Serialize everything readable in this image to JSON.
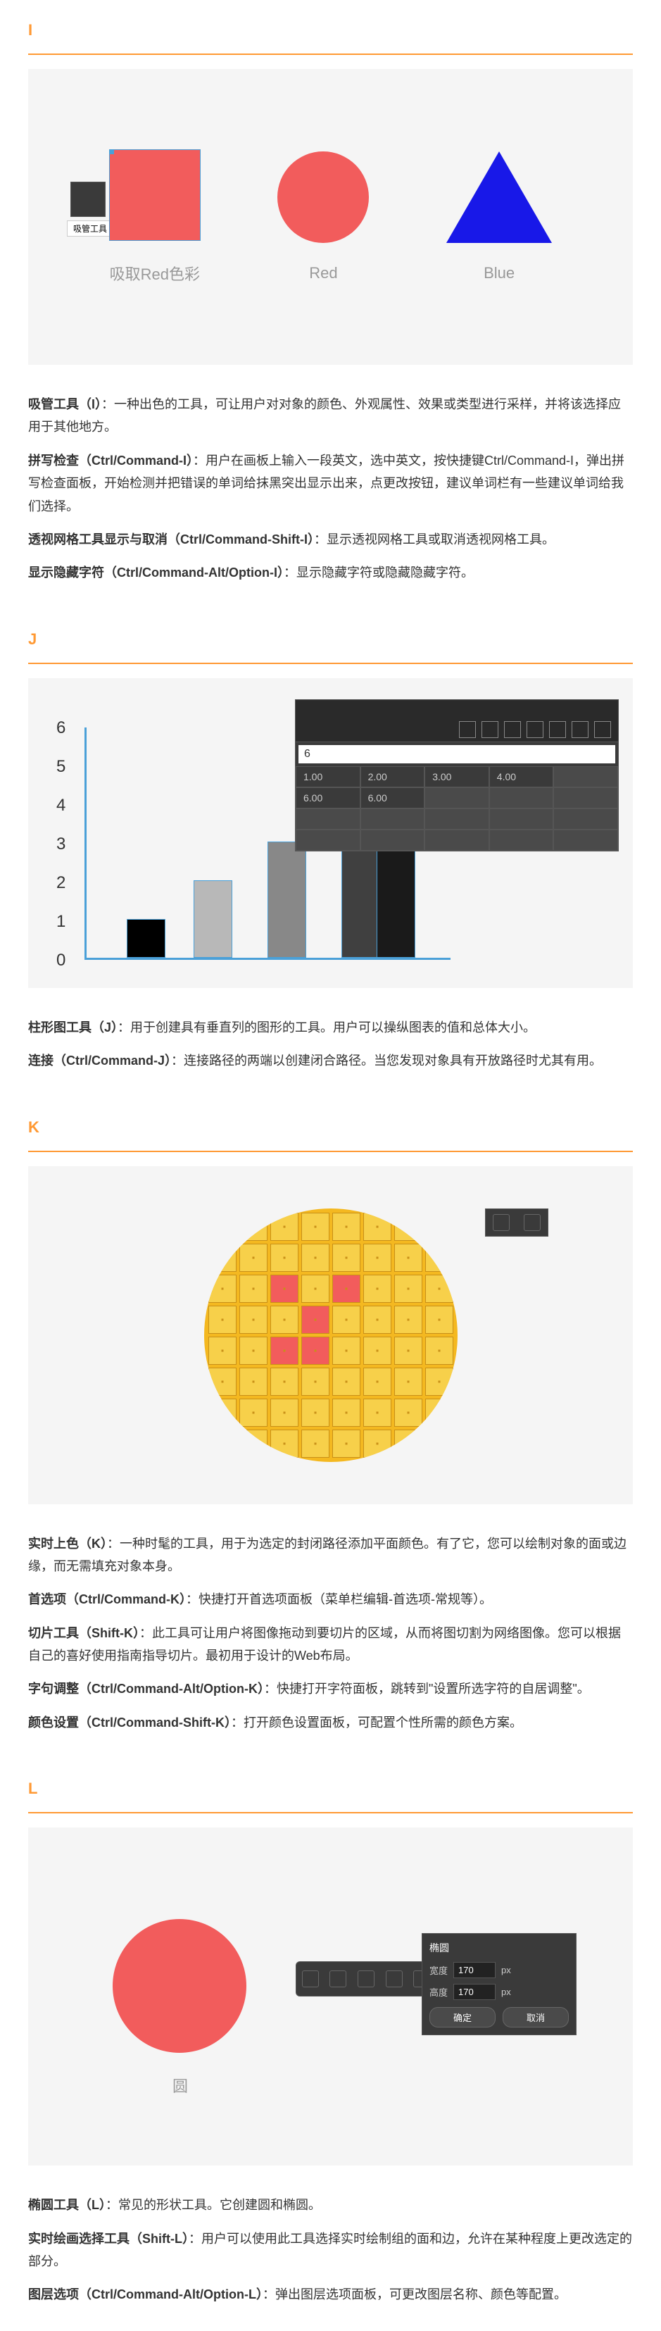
{
  "sections": {
    "I": {
      "letter": "I",
      "illustration": {
        "tool_tooltip": "吸管工具 (I)",
        "shapes": [
          {
            "type": "square",
            "color": "#f25c5c",
            "label": "吸取Red色彩"
          },
          {
            "type": "circle",
            "color": "#f25c5c",
            "label": "Red"
          },
          {
            "type": "triangle",
            "color": "#1818e8",
            "label": "Blue"
          }
        ]
      },
      "descriptions": [
        {
          "bold": "吸管工具（I）",
          "text": "：一种出色的工具，可让用户对对象的颜色、外观属性、效果或类型进行采样，并将该选择应用于其他地方。"
        },
        {
          "bold": "拼写检查（Ctrl/Command-I）",
          "text": "：用户在画板上输入一段英文，选中英文，按快捷键Ctrl/Command-I，弹出拼写检查面板，开始检测并把错误的单词给抹黑突出显示出来，点更改按钮，建议单词栏有一些建议单词给我们选择。"
        },
        {
          "bold": "透视网格工具显示与取消（Ctrl/Command-Shift-I）",
          "text": "：显示透视网格工具或取消透视网格工具。"
        },
        {
          "bold": "显示隐藏字符（Ctrl/Command-Alt/Option-I）",
          "text": "：显示隐藏字符或隐藏隐藏字符。"
        }
      ]
    },
    "J": {
      "letter": "J",
      "chart": {
        "y_ticks": [
          "0",
          "1",
          "2",
          "3",
          "4",
          "5",
          "6"
        ],
        "bars": [
          {
            "value": 1.0,
            "color": "#000000",
            "x": 60,
            "width": 55
          },
          {
            "value": 2.0,
            "color": "#b8b8b8",
            "x": 155,
            "width": 55
          },
          {
            "value": 3.0,
            "color": "#888888",
            "x": 260,
            "width": 55
          },
          {
            "value": 4.0,
            "color": "#404040",
            "x": 365,
            "width": 55
          },
          {
            "value": 6.0,
            "color": "#1a1a1a",
            "x": 415,
            "width": 55
          }
        ],
        "panel_input": "6",
        "panel_grid": [
          [
            "1.00",
            "2.00",
            "3.00",
            "4.00",
            ""
          ],
          [
            "6.00",
            "6.00",
            "",
            "",
            ""
          ],
          [
            "",
            "",
            "",
            "",
            ""
          ],
          [
            "",
            "",
            "",
            "",
            ""
          ]
        ]
      },
      "descriptions": [
        {
          "bold": "柱形图工具（J）",
          "text": "：用于创建具有垂直列的图形的工具。用户可以操纵图表的值和总体大小。"
        },
        {
          "bold": "连接（Ctrl/Command-J）",
          "text": "：连接路径的两端以创建闭合路径。当您发现对象具有开放路径时尤其有用。"
        }
      ]
    },
    "K": {
      "letter": "K",
      "wafer": {
        "bg_color": "#f4b820",
        "cell_color": "#f7d04a",
        "red_cells": [
          [
            2,
            2
          ],
          [
            2,
            4
          ],
          [
            3,
            3
          ],
          [
            4,
            2
          ],
          [
            4,
            3
          ]
        ]
      },
      "descriptions": [
        {
          "bold": "实时上色（K）",
          "text": "：一种时髦的工具，用于为选定的封闭路径添加平面颜色。有了它，您可以绘制对象的面或边缘，而无需填充对象本身。"
        },
        {
          "bold": "首选项（Ctrl/Command-K）",
          "text": "：快捷打开首选项面板（菜单栏编辑-首选项-常规等）。"
        },
        {
          "bold": "切片工具（Shift-K）",
          "text": "：此工具可让用户将图像拖动到要切片的区域，从而将图切割为网络图像。您可以根据自己的喜好使用指南指导切片。最初用于设计的Web布局。"
        },
        {
          "bold": "字句调整（Ctrl/Command-Alt/Option-K）",
          "text": "：快捷打开字符面板，跳转到\"设置所选字符的自居调整\"。"
        },
        {
          "bold": "颜色设置（Ctrl/Command-Shift-K）",
          "text": "：打开颜色设置面板，可配置个性所需的颜色方案。"
        }
      ]
    },
    "L": {
      "letter": "L",
      "circle_label": "圆",
      "prop_panel": {
        "title": "椭圆",
        "width_label": "宽度",
        "width_value": "170",
        "height_label": "高度",
        "height_value": "170",
        "unit": "px",
        "ok": "确定",
        "cancel": "取消"
      },
      "descriptions": [
        {
          "bold": "椭圆工具（L）",
          "text": "：常见的形状工具。它创建圆和椭圆。"
        },
        {
          "bold": "实时绘画选择工具（Shift-L）",
          "text": "：用户可以使用此工具选择实时绘制组的面和边，允许在某种程度上更改选定的部分。"
        },
        {
          "bold": "图层选项（Ctrl/Command-Alt/Option-L）",
          "text": "：弹出图层选项面板，可更改图层名称、颜色等配置。"
        }
      ]
    }
  }
}
